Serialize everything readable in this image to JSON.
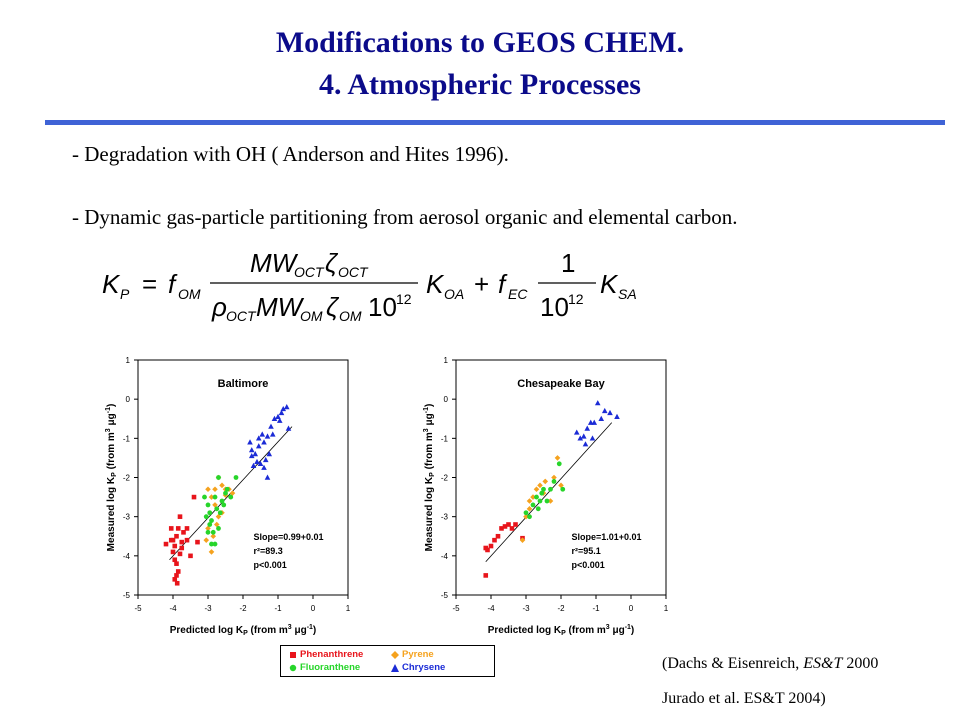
{
  "slide": {
    "title_line1": "Modifications to GEOS CHEM.",
    "title_line2": "4. Atmospheric  Processes",
    "bullet1": "- Degradation with OH ( Anderson and Hites 1996).",
    "bullet2": "- Dynamic gas-particle partitioning from aerosol organic and elemental carbon.",
    "ref_line1_pre": "(Dachs & Eisenreich, ",
    "ref_line1_ital": "ES&T",
    "ref_line1_post": " 2000",
    "ref_line2": "Jurado et al. ES&T 2004)",
    "accent_color": "#0b0b8a",
    "rule_color": "#3f63d6"
  },
  "legend": {
    "items": [
      {
        "label": "Phenanthrene",
        "color": "#e8141b",
        "marker": "square"
      },
      {
        "label": "Pyrene",
        "color": "#f5a21e",
        "marker": "diamond"
      },
      {
        "label": "Fluoranthene",
        "color": "#27d52a",
        "marker": "circle"
      },
      {
        "label": "Chrysene",
        "color": "#1b2bd6",
        "marker": "triangle"
      }
    ]
  },
  "chart_data": [
    {
      "type": "scatter",
      "title": "Baltimore",
      "xlabel": "Predicted log K",
      "ylabel": "Measured log K",
      "xlim": [
        -5,
        1
      ],
      "ylim": [
        -5,
        1
      ],
      "xticks": [
        -5,
        -4,
        -3,
        -2,
        -1,
        0,
        1
      ],
      "yticks": [
        -5,
        -4,
        -3,
        -2,
        -1,
        0,
        1
      ],
      "fit_line": [
        [
          -4.1,
          -4.1
        ],
        [
          -0.6,
          -0.7
        ]
      ],
      "annotation": [
        "Slope=0.99+0.01",
        "r²=89.3",
        "p<0.001"
      ],
      "series": [
        {
          "name": "Phenanthrene",
          "color": "#e8141b",
          "marker": "square",
          "points": [
            [
              -4.2,
              -3.7
            ],
            [
              -4.05,
              -3.6
            ],
            [
              -3.95,
              -3.75
            ],
            [
              -3.9,
              -3.5
            ],
            [
              -3.85,
              -3.3
            ],
            [
              -4.0,
              -3.9
            ],
            [
              -3.95,
              -4.1
            ],
            [
              -3.9,
              -4.2
            ],
            [
              -3.85,
              -4.4
            ],
            [
              -3.9,
              -4.5
            ],
            [
              -3.88,
              -4.7
            ],
            [
              -3.95,
              -4.6
            ],
            [
              -3.8,
              -3.95
            ],
            [
              -3.75,
              -3.65
            ],
            [
              -3.7,
              -3.4
            ],
            [
              -3.6,
              -3.3
            ],
            [
              -3.6,
              -3.6
            ],
            [
              -3.5,
              -4.0
            ],
            [
              -3.3,
              -3.65
            ],
            [
              -3.4,
              -2.5
            ],
            [
              -4.05,
              -3.3
            ],
            [
              -3.8,
              -3.0
            ],
            [
              -4.0,
              -3.6
            ],
            [
              -3.75,
              -3.8
            ]
          ]
        },
        {
          "name": "Pyrene",
          "color": "#f5a21e",
          "marker": "diamond",
          "points": [
            [
              -3.0,
              -2.3
            ],
            [
              -2.9,
              -2.5
            ],
            [
              -2.8,
              -2.3
            ],
            [
              -2.7,
              -2.0
            ],
            [
              -2.6,
              -2.2
            ],
            [
              -2.5,
              -2.45
            ],
            [
              -2.4,
              -2.3
            ],
            [
              -2.3,
              -2.4
            ],
            [
              -2.8,
              -2.7
            ],
            [
              -2.6,
              -2.9
            ],
            [
              -3.0,
              -3.3
            ],
            [
              -2.85,
              -3.5
            ],
            [
              -2.75,
              -3.2
            ],
            [
              -3.05,
              -3.6
            ],
            [
              -2.9,
              -3.9
            ],
            [
              -2.5,
              -2.3
            ],
            [
              -2.7,
              -3.0
            ]
          ]
        },
        {
          "name": "Fluoranthene",
          "color": "#27d52a",
          "marker": "circle",
          "points": [
            [
              -3.1,
              -2.5
            ],
            [
              -3.0,
              -2.7
            ],
            [
              -2.95,
              -2.9
            ],
            [
              -2.9,
              -3.1
            ],
            [
              -2.8,
              -2.5
            ],
            [
              -2.75,
              -2.8
            ],
            [
              -2.7,
              -3.3
            ],
            [
              -2.6,
              -2.6
            ],
            [
              -2.55,
              -2.7
            ],
            [
              -2.5,
              -2.4
            ],
            [
              -2.85,
              -3.4
            ],
            [
              -2.9,
              -3.7
            ],
            [
              -2.8,
              -3.7
            ],
            [
              -3.05,
              -3.0
            ],
            [
              -2.65,
              -2.9
            ],
            [
              -2.45,
              -2.3
            ],
            [
              -2.35,
              -2.5
            ],
            [
              -2.2,
              -2.0
            ],
            [
              -2.7,
              -2.0
            ],
            [
              -3.0,
              -3.4
            ],
            [
              -2.95,
              -3.2
            ]
          ]
        },
        {
          "name": "Chrysene",
          "color": "#1b2bd6",
          "marker": "triangle",
          "points": [
            [
              -1.8,
              -1.1
            ],
            [
              -1.75,
              -1.3
            ],
            [
              -1.65,
              -1.4
            ],
            [
              -1.55,
              -1.2
            ],
            [
              -1.45,
              -0.9
            ],
            [
              -1.4,
              -1.1
            ],
            [
              -1.3,
              -0.95
            ],
            [
              -1.2,
              -0.7
            ],
            [
              -1.1,
              -0.5
            ],
            [
              -1.0,
              -0.45
            ],
            [
              -0.95,
              -0.55
            ],
            [
              -0.9,
              -0.35
            ],
            [
              -0.85,
              -0.25
            ],
            [
              -0.75,
              -0.2
            ],
            [
              -0.7,
              -0.75
            ],
            [
              -1.6,
              -1.6
            ],
            [
              -1.7,
              -1.7
            ],
            [
              -1.5,
              -1.65
            ],
            [
              -1.35,
              -1.55
            ],
            [
              -1.25,
              -1.4
            ],
            [
              -1.4,
              -1.75
            ],
            [
              -1.3,
              -2.0
            ],
            [
              -1.75,
              -1.45
            ],
            [
              -1.55,
              -1.0
            ],
            [
              -1.15,
              -0.9
            ]
          ]
        }
      ]
    },
    {
      "type": "scatter",
      "title": "Chesapeake Bay",
      "xlabel": "Predicted log K",
      "ylabel": "Measured log K",
      "xlim": [
        -5,
        1
      ],
      "ylim": [
        -5,
        1
      ],
      "xticks": [
        -5,
        -4,
        -3,
        -2,
        -1,
        0,
        1
      ],
      "yticks": [
        -5,
        -4,
        -3,
        -2,
        -1,
        0,
        1
      ],
      "fit_line": [
        [
          -4.15,
          -4.15
        ],
        [
          -0.55,
          -0.6
        ]
      ],
      "annotation": [
        "Slope=1.01+0.01",
        "r²=95.1",
        "p<0.001"
      ],
      "series": [
        {
          "name": "Phenanthrene",
          "color": "#e8141b",
          "marker": "square",
          "points": [
            [
              -4.15,
              -3.8
            ],
            [
              -4.1,
              -3.85
            ],
            [
              -4.0,
              -3.75
            ],
            [
              -3.9,
              -3.6
            ],
            [
              -3.8,
              -3.5
            ],
            [
              -3.7,
              -3.3
            ],
            [
              -3.6,
              -3.25
            ],
            [
              -3.5,
              -3.2
            ],
            [
              -3.4,
              -3.3
            ],
            [
              -3.3,
              -3.2
            ],
            [
              -4.15,
              -4.5
            ],
            [
              -3.1,
              -3.55
            ]
          ]
        },
        {
          "name": "Pyrene",
          "color": "#f5a21e",
          "marker": "diamond",
          "points": [
            [
              -3.0,
              -3.0
            ],
            [
              -2.9,
              -2.8
            ],
            [
              -2.8,
              -2.5
            ],
            [
              -2.7,
              -2.3
            ],
            [
              -2.6,
              -2.2
            ],
            [
              -2.5,
              -2.4
            ],
            [
              -2.45,
              -2.1
            ],
            [
              -2.2,
              -2.0
            ],
            [
              -2.1,
              -1.5
            ],
            [
              -2.0,
              -2.2
            ],
            [
              -2.3,
              -2.6
            ],
            [
              -3.1,
              -3.6
            ],
            [
              -2.9,
              -2.6
            ]
          ]
        },
        {
          "name": "Fluoranthene",
          "color": "#27d52a",
          "marker": "circle",
          "points": [
            [
              -3.0,
              -2.9
            ],
            [
              -2.9,
              -3.0
            ],
            [
              -2.8,
              -2.7
            ],
            [
              -2.7,
              -2.5
            ],
            [
              -2.6,
              -2.6
            ],
            [
              -2.55,
              -2.4
            ],
            [
              -2.5,
              -2.3
            ],
            [
              -2.4,
              -2.6
            ],
            [
              -2.3,
              -2.3
            ],
            [
              -2.2,
              -2.1
            ],
            [
              -2.05,
              -1.65
            ],
            [
              -1.95,
              -2.3
            ],
            [
              -2.65,
              -2.8
            ]
          ]
        },
        {
          "name": "Chrysene",
          "color": "#1b2bd6",
          "marker": "triangle",
          "points": [
            [
              -1.55,
              -0.85
            ],
            [
              -1.45,
              -1.0
            ],
            [
              -1.35,
              -0.95
            ],
            [
              -1.25,
              -0.75
            ],
            [
              -1.15,
              -0.6
            ],
            [
              -1.05,
              -0.6
            ],
            [
              -0.95,
              -0.1
            ],
            [
              -0.85,
              -0.5
            ],
            [
              -0.75,
              -0.3
            ],
            [
              -0.6,
              -0.35
            ],
            [
              -0.4,
              -0.45
            ],
            [
              -1.3,
              -1.15
            ],
            [
              -1.1,
              -1.0
            ]
          ]
        }
      ]
    }
  ]
}
